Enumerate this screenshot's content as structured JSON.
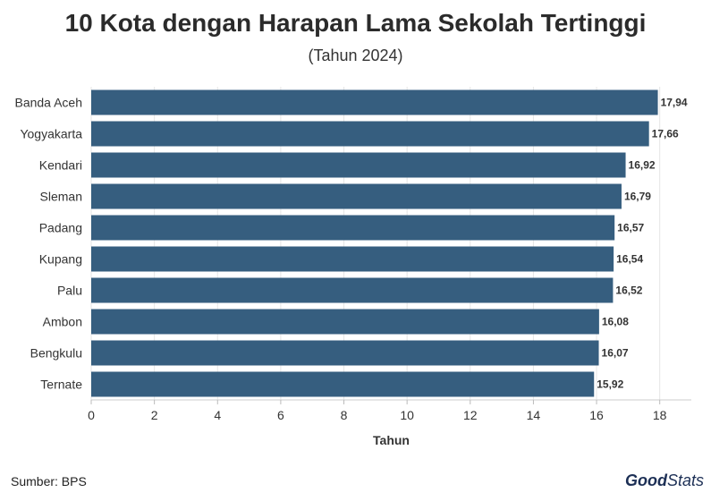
{
  "chart_data": {
    "type": "bar",
    "orientation": "horizontal",
    "title": "10 Kota dengan Harapan Lama Sekolah Tertinggi",
    "subtitle": "(Tahun 2024)",
    "xlabel": "Tahun",
    "ylabel": "",
    "categories": [
      "Banda Aceh",
      "Yogyakarta",
      "Kendari",
      "Sleman",
      "Padang",
      "Kupang",
      "Palu",
      "Ambon",
      "Bengkulu",
      "Ternate"
    ],
    "values": [
      17.94,
      17.66,
      16.92,
      16.79,
      16.57,
      16.54,
      16.52,
      16.08,
      16.07,
      15.92
    ],
    "value_labels": [
      "17,94",
      "17,66",
      "16,92",
      "16,79",
      "16,57",
      "16,54",
      "16,52",
      "16,08",
      "16,07",
      "15,92"
    ],
    "xlim": [
      0,
      19
    ],
    "xticks": [
      0,
      2,
      4,
      6,
      8,
      10,
      12,
      14,
      16,
      18
    ],
    "grid": true,
    "bar_color": "#365e7f"
  },
  "footer": {
    "source": "Sumber: BPS",
    "logo_good": "Good",
    "logo_stats": "Stats"
  }
}
